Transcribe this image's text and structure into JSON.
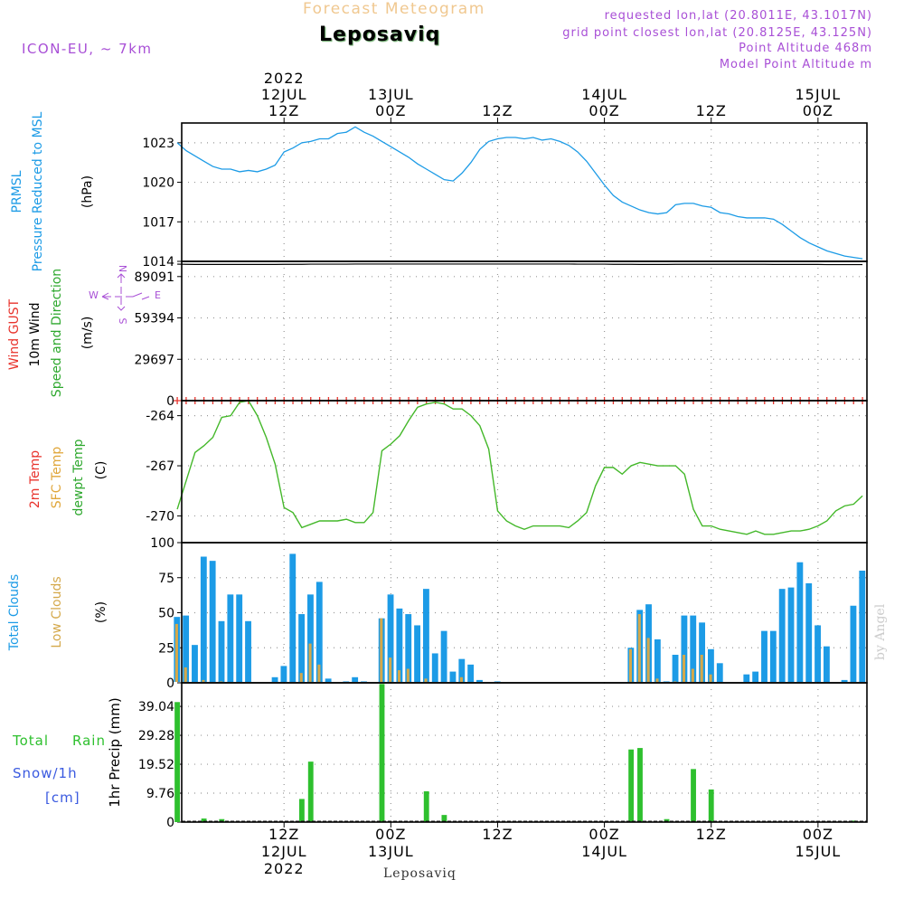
{
  "header": {
    "subtitle_faded": "Forecast Meteogram",
    "station": "Leposaviq",
    "model": "ICON-EU, ~ 7km",
    "requested": "requested lon,lat (20.8011E, 43.1017N)",
    "grid_point": "grid point closest lon,lat (20.8125E, 43.125N)",
    "point_alt": "Point Altitude 468m",
    "model_alt": "Model Point Altitude m",
    "footer_station": "Leposaviq",
    "watermark": "by Angel"
  },
  "time_axis": {
    "top_year": "2022",
    "top_labels": [
      {
        "t": 12,
        "line1": "12JUL",
        "line2": "12Z"
      },
      {
        "t": 24,
        "line1": "13JUL",
        "line2": "00Z"
      },
      {
        "t": 36,
        "line1": "",
        "line2": "12Z"
      },
      {
        "t": 48,
        "line1": "14JUL",
        "line2": "00Z"
      },
      {
        "t": 60,
        "line1": "",
        "line2": "12Z"
      },
      {
        "t": 72,
        "line1": "15JUL",
        "line2": "00Z"
      }
    ],
    "bottom_labels": [
      {
        "t": 12,
        "line1": "12Z",
        "line2": "12JUL",
        "line3": "2022"
      },
      {
        "t": 24,
        "line1": "00Z",
        "line2": "13JUL",
        "line3": ""
      },
      {
        "t": 36,
        "line1": "12Z",
        "line2": "",
        "line3": ""
      },
      {
        "t": 48,
        "line1": "00Z",
        "line2": "14JUL",
        "line3": ""
      },
      {
        "t": 60,
        "line1": "12Z",
        "line2": "",
        "line3": ""
      },
      {
        "t": 72,
        "line1": "00Z",
        "line2": "15JUL",
        "line3": ""
      }
    ]
  },
  "colors": {
    "pressure": "#1c9be6",
    "gust": "#e8332c",
    "wind": "#000000",
    "dir": "#2ea82e",
    "dir_rose": "#a84fd6",
    "temp2m": "#e8332c",
    "sfc": "#e0a63a",
    "dewpt": "#2ea82e",
    "dewpt_line": "#44b82a",
    "total_cloud": "#1c9be6",
    "low_cloud": "#d4a84a",
    "rain": "#2ec02e",
    "snow": "#3a5ae0",
    "info": "#a84fd6",
    "faded": "#f0c890",
    "gridline": "#999999"
  },
  "chart_data": [
    {
      "type": "line",
      "panel": "pressure",
      "title_lines": [
        "PRMSL",
        "Pressure Reduced to MSL"
      ],
      "unit": "(hPa)",
      "ylim": [
        1014,
        1024.5
      ],
      "yticks": [
        "1014",
        "1017",
        "1020",
        "1023"
      ],
      "ytick_values": [
        1014,
        1017,
        1020,
        1023
      ],
      "x": [
        0,
        1,
        2,
        3,
        4,
        5,
        6,
        7,
        8,
        9,
        10,
        11,
        12,
        13,
        14,
        15,
        16,
        17,
        18,
        19,
        20,
        21,
        22,
        23,
        24,
        25,
        26,
        27,
        28,
        29,
        30,
        31,
        32,
        33,
        34,
        35,
        36,
        37,
        38,
        39,
        40,
        41,
        42,
        43,
        44,
        45,
        46,
        47,
        48,
        49,
        50,
        51,
        52,
        53,
        54,
        55,
        56,
        57,
        58,
        59,
        60,
        61,
        62,
        63,
        64,
        65,
        66,
        67,
        68,
        69,
        70,
        71,
        72,
        73,
        74,
        75,
        76,
        77
      ],
      "series": [
        {
          "values": [
            1023,
            1022.4,
            1022,
            1021.6,
            1021.2,
            1021,
            1021,
            1020.8,
            1020.9,
            1020.8,
            1021,
            1021.3,
            1022.3,
            1022.6,
            1023,
            1023.1,
            1023.3,
            1023.3,
            1023.7,
            1023.8,
            1024.2,
            1023.8,
            1023.5,
            1023.1,
            1022.7,
            1022.3,
            1021.9,
            1021.4,
            1021,
            1020.6,
            1020.2,
            1020.1,
            1020.7,
            1021.5,
            1022.5,
            1023.1,
            1023.3,
            1023.4,
            1023.4,
            1023.3,
            1023.4,
            1023.2,
            1023.3,
            1023.1,
            1022.8,
            1022.3,
            1021.6,
            1020.7,
            1019.8,
            1019,
            1018.5,
            1018.2,
            1017.9,
            1017.7,
            1017.6,
            1017.7,
            1018.3,
            1018.4,
            1018.4,
            1018.2,
            1018.1,
            1017.7,
            1017.6,
            1017.4,
            1017.3,
            1017.3,
            1017.3,
            1017.2,
            1016.8,
            1016.3,
            1015.8,
            1015.4,
            1015.1,
            1014.8,
            1014.6,
            1014.4,
            1014.3,
            1014.2
          ]
        }
      ]
    },
    {
      "type": "line",
      "panel": "wind",
      "title_lines": [
        "Wind GUST",
        "10m Wind",
        "Speed and Direction"
      ],
      "unit": "(m/s)",
      "compass": {
        "n": "N",
        "s": "S",
        "w": "W",
        "e": "E"
      },
      "ylim": [
        0,
        100000
      ],
      "yticks": [
        "0",
        "29697",
        "59394",
        "89091"
      ],
      "ytick_values": [
        0,
        29697,
        59394,
        89091
      ],
      "x": [
        0,
        1,
        2,
        3,
        4,
        5,
        6,
        7,
        8,
        9,
        10,
        11,
        12,
        13,
        14,
        15,
        16,
        17,
        18,
        19,
        20,
        21,
        22,
        23,
        24,
        25,
        26,
        27,
        28,
        29,
        30,
        31,
        32,
        33,
        34,
        35,
        36,
        37,
        38,
        39,
        40,
        41,
        42,
        43,
        44,
        45,
        46,
        47,
        48,
        49,
        50,
        51,
        52,
        53,
        54,
        55,
        56,
        57,
        58,
        59,
        60,
        61,
        62,
        63,
        64,
        65,
        66,
        67,
        68,
        69,
        70,
        71,
        72,
        73,
        74,
        75,
        76,
        77
      ],
      "series": [
        {
          "name_ref": "10m Wind",
          "values": [
            98000,
            97900,
            97800,
            97800,
            97800,
            97800,
            97800,
            97800,
            97800,
            97800,
            97800,
            97800,
            97900,
            97900,
            97900,
            98000,
            98000,
            98000,
            98000,
            98000,
            98100,
            98100,
            98100,
            98100,
            98100,
            98100,
            98100,
            98100,
            98100,
            98100,
            98100,
            98100,
            98100,
            98100,
            98100,
            98100,
            98100,
            98100,
            98100,
            98100,
            98100,
            98100,
            98100,
            98100,
            98100,
            98000,
            98000,
            98000,
            98000,
            97900,
            97900,
            97900,
            97800,
            97800,
            97800,
            97800,
            97900,
            97900,
            97900,
            97900,
            97900,
            97900,
            97900,
            97900,
            97900,
            97900,
            97900,
            97800,
            97800,
            97800,
            97800,
            97800,
            97800,
            97700,
            97700,
            97700,
            97700,
            97700
          ]
        },
        {
          "name_ref": "Wind GUST",
          "values": [
            0,
            0,
            0,
            0,
            0,
            0,
            0,
            0,
            0,
            0,
            0,
            0,
            0,
            0,
            0,
            0,
            0,
            0,
            0,
            0,
            0,
            0,
            0,
            0,
            0,
            0,
            0,
            0,
            0,
            0,
            0,
            0,
            0,
            0,
            0,
            0,
            0,
            0,
            0,
            0,
            0,
            0,
            0,
            0,
            0,
            0,
            0,
            0,
            0,
            0,
            0,
            0,
            0,
            0,
            0,
            0,
            0,
            0,
            0,
            0,
            0,
            0,
            0,
            0,
            0,
            0,
            0,
            0,
            0,
            0,
            0,
            0,
            0,
            0,
            0,
            0,
            0,
            0
          ]
        }
      ]
    },
    {
      "type": "line",
      "panel": "temperature",
      "title_lines": [
        "2m Temp",
        "SFC Temp",
        "dewpt Temp"
      ],
      "unit": "(C)",
      "ylim": [
        -271.6,
        -263.1
      ],
      "yticks": [
        "-270",
        "-267",
        "-264"
      ],
      "ytick_values": [
        -270,
        -267,
        -264
      ],
      "x": [
        0,
        1,
        2,
        3,
        4,
        5,
        6,
        7,
        8,
        9,
        10,
        11,
        12,
        13,
        14,
        15,
        16,
        17,
        18,
        19,
        20,
        21,
        22,
        23,
        24,
        25,
        26,
        27,
        28,
        29,
        30,
        31,
        32,
        33,
        34,
        35,
        36,
        37,
        38,
        39,
        40,
        41,
        42,
        43,
        44,
        45,
        46,
        47,
        48,
        49,
        50,
        51,
        52,
        53,
        54,
        55,
        56,
        57,
        58,
        59,
        60,
        61,
        62,
        63,
        64,
        65,
        66,
        67,
        68,
        69,
        70,
        71,
        72,
        73,
        74,
        75,
        76,
        77
      ],
      "series": [
        {
          "name_ref": "dewpt Temp",
          "values": [
            -269.6,
            -267.9,
            -266.2,
            -265.8,
            -265.3,
            -264.1,
            -264,
            -263.2,
            -263.1,
            -264,
            -265.3,
            -266.9,
            -269.5,
            -269.8,
            -270.7,
            -270.5,
            -270.3,
            -270.3,
            -270.3,
            -270.2,
            -270.4,
            -270.4,
            -269.8,
            -266.1,
            -265.7,
            -265.2,
            -264.3,
            -263.5,
            -263.3,
            -263.2,
            -263.3,
            -263.6,
            -263.6,
            -264,
            -264.6,
            -266,
            -269.7,
            -270.3,
            -270.6,
            -270.8,
            -270.6,
            -270.6,
            -270.6,
            -270.6,
            -270.7,
            -270.3,
            -269.8,
            -268.2,
            -267.1,
            -267.1,
            -267.5,
            -267,
            -266.8,
            -266.9,
            -267,
            -267,
            -267,
            -267.5,
            -269.6,
            -270.6,
            -270.6,
            -270.8,
            -270.9,
            -271,
            -271.1,
            -270.9,
            -271.1,
            -271.1,
            -271,
            -270.9,
            -270.9,
            -270.8,
            -270.6,
            -270.3,
            -269.7,
            -269.4,
            -269.3,
            -268.8
          ]
        }
      ]
    },
    {
      "type": "bar",
      "panel": "clouds",
      "title_lines": [
        "Total Clouds",
        "Low Clouds"
      ],
      "unit": "(%)",
      "ylim": [
        0,
        100
      ],
      "yticks": [
        "0",
        "25",
        "50",
        "75",
        "100"
      ],
      "ytick_values": [
        0,
        25,
        50,
        75,
        100
      ],
      "x": [
        0,
        1,
        2,
        3,
        4,
        5,
        6,
        7,
        8,
        9,
        10,
        11,
        12,
        13,
        14,
        15,
        16,
        17,
        18,
        19,
        20,
        21,
        22,
        23,
        24,
        25,
        26,
        27,
        28,
        29,
        30,
        31,
        32,
        33,
        34,
        35,
        36,
        37,
        38,
        39,
        40,
        41,
        42,
        43,
        44,
        45,
        46,
        47,
        48,
        49,
        50,
        51,
        52,
        53,
        54,
        55,
        56,
        57,
        58,
        59,
        60,
        61,
        62,
        63,
        64,
        65,
        66,
        67,
        68,
        69,
        70,
        71,
        72,
        73,
        74,
        75,
        76,
        77
      ],
      "series": [
        {
          "name_ref": "Total Clouds",
          "values": [
            47,
            48,
            27,
            90,
            87,
            44,
            63,
            63,
            44,
            0,
            0,
            4,
            12,
            92,
            49,
            63,
            72,
            3,
            0,
            1,
            4,
            1,
            0,
            46,
            63,
            53,
            49,
            41,
            67,
            21,
            37,
            8,
            17,
            13,
            2,
            0,
            1,
            0,
            0,
            0,
            0,
            0,
            0,
            0,
            0,
            0,
            0,
            0,
            0,
            0,
            0,
            25,
            52,
            56,
            31,
            1,
            20,
            48,
            48,
            43,
            24,
            14,
            0,
            0,
            6,
            8,
            37,
            37,
            67,
            68,
            86,
            71,
            41,
            26,
            0,
            2,
            55,
            80
          ]
        },
        {
          "name_ref": "Low Clouds",
          "values": [
            42,
            11,
            0,
            2,
            0,
            1,
            0,
            0,
            0,
            0,
            0,
            0,
            0,
            0,
            7,
            28,
            13,
            0,
            0,
            0,
            0,
            0,
            0,
            46,
            18,
            9,
            10,
            0,
            3,
            0,
            0,
            0,
            4,
            0,
            0,
            0,
            0,
            0,
            0,
            0,
            0,
            0,
            0,
            0,
            0,
            0,
            0,
            0,
            0,
            0,
            0,
            24,
            49,
            32,
            3,
            0,
            1,
            20,
            10,
            20,
            6,
            0,
            0,
            0,
            0,
            0,
            0,
            0,
            0,
            0,
            0,
            0,
            0,
            0,
            0,
            0,
            0,
            0
          ]
        }
      ]
    },
    {
      "type": "bar",
      "panel": "precip",
      "title_lines": [
        "Total",
        "Rain",
        "Snow/1h",
        "[cm]"
      ],
      "ylabel": "1hr Precip (mm)",
      "ylim": [
        0,
        47
      ],
      "yticks": [
        "0",
        "9.76",
        "19.52",
        "29.28",
        "39.04"
      ],
      "ytick_values": [
        0,
        9.76,
        19.52,
        29.28,
        39.04
      ],
      "x": [
        0,
        1,
        2,
        3,
        4,
        5,
        6,
        7,
        8,
        9,
        10,
        11,
        12,
        13,
        14,
        15,
        16,
        17,
        18,
        19,
        20,
        21,
        22,
        23,
        24,
        25,
        26,
        27,
        28,
        29,
        30,
        31,
        32,
        33,
        34,
        35,
        36,
        37,
        38,
        39,
        40,
        41,
        42,
        43,
        44,
        45,
        46,
        47,
        48,
        49,
        50,
        51,
        52,
        53,
        54,
        55,
        56,
        57,
        58,
        59,
        60,
        61,
        62,
        63,
        64,
        65,
        66,
        67,
        68,
        69,
        70,
        71,
        72,
        73,
        74,
        75,
        76,
        77
      ],
      "series": [
        {
          "name_ref": "Total Rain",
          "values": [
            40.5,
            0,
            0,
            1.2,
            0,
            1,
            0,
            0,
            0,
            0,
            0,
            0,
            0,
            0,
            7.8,
            20.4,
            0,
            0,
            0,
            0,
            0,
            0,
            0,
            46.6,
            0,
            0,
            0,
            0,
            10.4,
            0,
            2.4,
            0,
            0,
            0,
            0,
            0,
            0,
            0,
            0,
            0,
            0,
            0,
            0,
            0,
            0,
            0,
            0,
            0,
            0,
            0,
            0,
            24.5,
            25,
            0,
            0,
            1,
            0,
            0,
            17.9,
            0,
            11,
            0,
            0,
            0,
            0,
            0,
            0,
            0,
            0,
            0,
            0,
            0,
            0,
            0,
            0,
            0,
            0.5,
            0
          ]
        }
      ]
    }
  ]
}
